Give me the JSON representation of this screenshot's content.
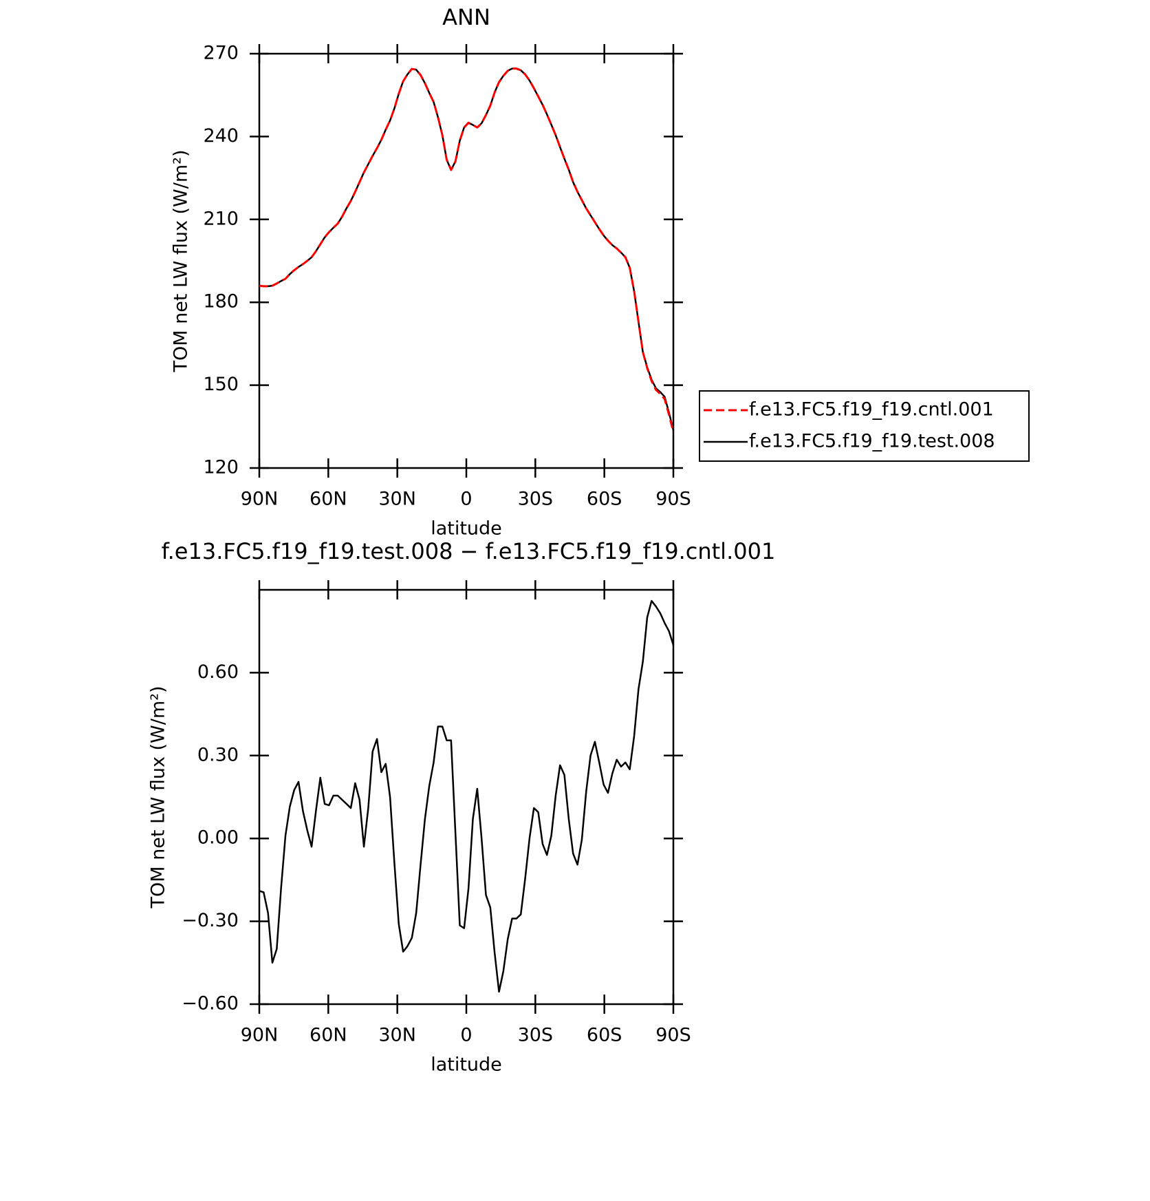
{
  "chart_data": [
    {
      "type": "line",
      "title": "ANN",
      "xlabel": "latitude",
      "ylabel": "TOM net LW flux (W/m²)",
      "x": [
        90,
        88.11,
        86.21,
        84.32,
        82.42,
        80.53,
        78.63,
        76.74,
        74.84,
        72.95,
        71.05,
        69.16,
        67.26,
        65.37,
        63.47,
        61.58,
        59.68,
        57.79,
        55.89,
        54.0,
        52.11,
        50.21,
        48.32,
        46.42,
        44.53,
        42.63,
        40.74,
        38.84,
        36.95,
        35.05,
        33.16,
        31.26,
        29.37,
        27.47,
        25.58,
        23.68,
        21.79,
        19.89,
        18.0,
        16.11,
        14.21,
        12.32,
        10.42,
        8.53,
        6.63,
        4.74,
        2.84,
        0.95,
        -0.95,
        -2.84,
        -4.74,
        -6.63,
        -8.53,
        -10.42,
        -12.32,
        -14.21,
        -16.11,
        -18.0,
        -19.89,
        -21.79,
        -23.68,
        -25.58,
        -27.47,
        -29.37,
        -31.26,
        -33.16,
        -35.05,
        -36.95,
        -38.84,
        -40.74,
        -42.63,
        -44.53,
        -46.42,
        -48.32,
        -50.21,
        -52.11,
        -54.0,
        -55.89,
        -57.79,
        -59.68,
        -61.58,
        -63.47,
        -65.37,
        -67.26,
        -69.16,
        -71.05,
        -72.95,
        -74.84,
        -76.74,
        -78.63,
        -80.53,
        -82.42,
        -84.32,
        -86.21,
        -88.11,
        -90
      ],
      "series": [
        {
          "name": "f.e13.FC5.f19_f19.cntl.001",
          "color": "#ff0000",
          "dash": true,
          "values": [
            186.0,
            185.8,
            185.8,
            186.0,
            186.8,
            187.7,
            188.5,
            190.2,
            191.6,
            192.8,
            193.8,
            195.0,
            196.3,
            198.5,
            201.0,
            203.5,
            205.4,
            207.0,
            208.5,
            211.0,
            214.0,
            216.7,
            220.0,
            223.5,
            227.0,
            230.0,
            233.0,
            235.8,
            238.8,
            242.5,
            245.8,
            250.2,
            255.5,
            260.0,
            262.5,
            264.5,
            264.2,
            262.3,
            259.3,
            255.8,
            252.5,
            247.0,
            240.5,
            231.6,
            227.9,
            231.0,
            238.5,
            243.3,
            245.0,
            244.2,
            243.3,
            244.8,
            247.8,
            251.2,
            256.0,
            259.7,
            262.0,
            263.8,
            264.6,
            264.6,
            264.0,
            262.5,
            260.3,
            257.5,
            254.5,
            251.5,
            248.0,
            244.3,
            240.5,
            236.2,
            232.0,
            228.0,
            223.5,
            220.0,
            217.0,
            214.0,
            211.5,
            209.0,
            206.5,
            204.2,
            202.3,
            200.7,
            199.5,
            198.0,
            196.3,
            192.5,
            184.0,
            173.0,
            162.0,
            156.2,
            151.5,
            148.3,
            146.8,
            145.0,
            139.3,
            133.0
          ]
        },
        {
          "name": "f.e13.FC5.f19_f19.test.008",
          "color": "#000000",
          "dash": false,
          "values": [
            186.0,
            185.8,
            185.8,
            186.0,
            186.8,
            187.7,
            188.5,
            190.2,
            191.6,
            192.8,
            193.8,
            195.0,
            196.3,
            198.5,
            201.0,
            203.5,
            205.4,
            207.0,
            208.5,
            211.0,
            214.0,
            216.7,
            220.0,
            223.5,
            227.0,
            230.0,
            233.0,
            235.8,
            238.8,
            242.5,
            245.8,
            250.2,
            255.5,
            260.0,
            262.5,
            264.5,
            264.2,
            262.3,
            259.3,
            255.8,
            252.5,
            247.0,
            240.5,
            231.6,
            227.9,
            231.0,
            238.5,
            243.3,
            245.0,
            244.2,
            243.3,
            244.8,
            247.8,
            251.2,
            256.0,
            259.7,
            262.0,
            263.8,
            264.6,
            264.6,
            264.0,
            262.5,
            260.3,
            257.5,
            254.5,
            251.5,
            248.0,
            244.3,
            240.5,
            236.2,
            232.0,
            228.0,
            223.5,
            220.0,
            217.0,
            214.0,
            211.5,
            209.0,
            206.5,
            204.2,
            202.3,
            200.7,
            199.5,
            198.0,
            196.3,
            192.5,
            184.0,
            173.0,
            162.0,
            156.5,
            152.0,
            148.9,
            147.5,
            145.8,
            140.0,
            133.7
          ]
        }
      ],
      "xlim": [
        90,
        -90
      ],
      "xticks": [
        {
          "value": 90,
          "label": "90N"
        },
        {
          "value": 60,
          "label": "60N"
        },
        {
          "value": 30,
          "label": "30N"
        },
        0,
        {
          "value": -30,
          "label": "30S"
        },
        {
          "value": -60,
          "label": "60S"
        },
        {
          "value": -90,
          "label": "90S"
        }
      ],
      "ylim": [
        120,
        270
      ],
      "yticks": [
        120,
        150,
        180,
        210,
        240,
        270
      ],
      "legend": "right"
    },
    {
      "type": "line",
      "title": "f.e13.FC5.f19_f19.test.008 − f.e13.FC5.f19_f19.cntl.001",
      "xlabel": "latitude",
      "ylabel": "TOM net LW flux (W/m²)",
      "x": [
        90,
        88.11,
        86.21,
        84.32,
        82.42,
        80.53,
        78.63,
        76.74,
        74.84,
        72.95,
        71.05,
        69.16,
        67.26,
        65.37,
        63.47,
        61.58,
        59.68,
        57.79,
        55.89,
        54.0,
        52.11,
        50.21,
        48.32,
        46.42,
        44.53,
        42.63,
        40.74,
        38.84,
        36.95,
        35.05,
        33.16,
        31.26,
        29.37,
        27.47,
        25.58,
        23.68,
        21.79,
        19.89,
        18.0,
        16.11,
        14.21,
        12.32,
        10.42,
        8.53,
        6.63,
        4.74,
        2.84,
        0.95,
        -0.95,
        -2.84,
        -4.74,
        -6.63,
        -8.53,
        -10.42,
        -12.32,
        -14.21,
        -16.11,
        -18.0,
        -19.89,
        -21.79,
        -23.68,
        -25.58,
        -27.47,
        -29.37,
        -31.26,
        -33.16,
        -35.05,
        -36.95,
        -38.84,
        -40.74,
        -42.63,
        -44.53,
        -46.42,
        -48.32,
        -50.21,
        -52.11,
        -54.0,
        -55.89,
        -57.79,
        -59.68,
        -61.58,
        -63.47,
        -65.37,
        -67.26,
        -69.16,
        -71.05,
        -72.95,
        -74.84,
        -76.74,
        -78.63,
        -80.53,
        -82.42,
        -84.32,
        -86.21,
        -88.11,
        -90
      ],
      "series": [
        {
          "color": "#000000",
          "dash": false,
          "values": [
            -0.19,
            -0.195,
            -0.27,
            -0.45,
            -0.4,
            -0.18,
            0.01,
            0.115,
            0.175,
            0.205,
            0.1,
            0.03,
            -0.03,
            0.1,
            0.22,
            0.125,
            0.12,
            0.155,
            0.155,
            0.14,
            0.125,
            0.11,
            0.2,
            0.14,
            -0.03,
            0.11,
            0.315,
            0.36,
            0.24,
            0.27,
            0.15,
            -0.09,
            -0.31,
            -0.41,
            -0.39,
            -0.36,
            -0.27,
            -0.095,
            0.07,
            0.19,
            0.275,
            0.405,
            0.405,
            0.355,
            0.355,
            0.02,
            -0.315,
            -0.325,
            -0.18,
            0.07,
            0.18,
            0.0,
            -0.205,
            -0.25,
            -0.415,
            -0.555,
            -0.48,
            -0.365,
            -0.29,
            -0.29,
            -0.275,
            -0.145,
            0.0,
            0.11,
            0.095,
            -0.02,
            -0.06,
            0.01,
            0.155,
            0.265,
            0.23,
            0.07,
            -0.055,
            -0.095,
            -0.005,
            0.17,
            0.3,
            0.35,
            0.275,
            0.195,
            0.165,
            0.235,
            0.285,
            0.26,
            0.275,
            0.25,
            0.37,
            0.54,
            0.64,
            0.8,
            0.86,
            0.84,
            0.815,
            0.78,
            0.75,
            0.7
          ]
        }
      ],
      "xlim": [
        90,
        -90
      ],
      "xticks": [
        {
          "value": 90,
          "label": "90N"
        },
        {
          "value": 60,
          "label": "60N"
        },
        {
          "value": 30,
          "label": "30N"
        },
        0,
        {
          "value": -30,
          "label": "30S"
        },
        {
          "value": -60,
          "label": "60S"
        },
        {
          "value": -90,
          "label": "90S"
        }
      ],
      "ylim": [
        -0.6,
        0.9
      ],
      "yticks": [
        {
          "value": -0.6,
          "label": "−0.60"
        },
        {
          "value": -0.3,
          "label": "−0.30"
        },
        {
          "value": 0,
          "label": "0.00"
        },
        {
          "value": 0.3,
          "label": "0.30"
        },
        {
          "value": 0.6,
          "label": "0.60"
        }
      ]
    }
  ]
}
